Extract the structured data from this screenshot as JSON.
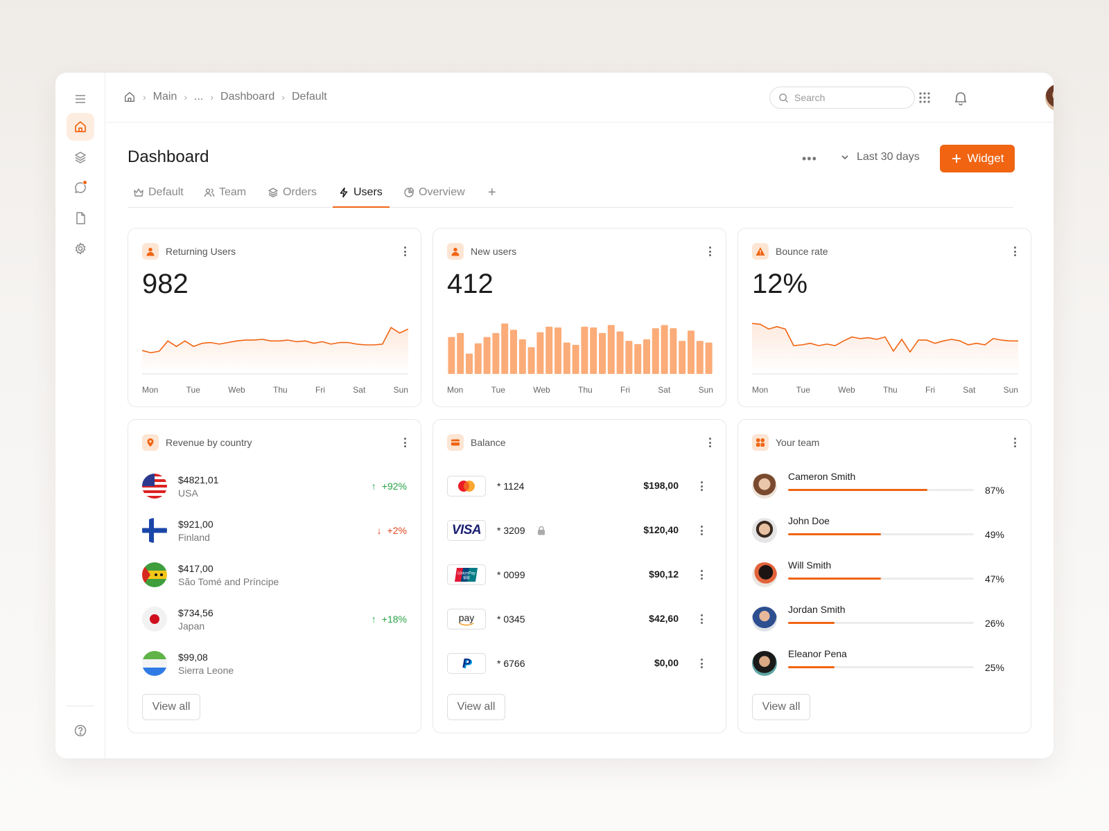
{
  "breadcrumb": {
    "items": [
      "Main",
      "...",
      "Dashboard",
      "Default"
    ]
  },
  "search": {
    "placeholder": "Search"
  },
  "header": {
    "title": "Dashboard",
    "more": "•••",
    "range": "Last 30 days",
    "widget_label": "Widget"
  },
  "tabs": [
    {
      "label": "Default",
      "icon": "crown-icon"
    },
    {
      "label": "Team",
      "icon": "users-icon"
    },
    {
      "label": "Orders",
      "icon": "layers-icon"
    },
    {
      "label": "Users",
      "icon": "bolt-icon",
      "active": true
    },
    {
      "label": "Overview",
      "icon": "pie-icon"
    }
  ],
  "colors": {
    "accent": "#f06412",
    "bar": "#fbac78",
    "up": "#25a244",
    "down": "#e0461e"
  },
  "days": [
    "Mon",
    "Tue",
    "Web",
    "Thu",
    "Fri",
    "Sat",
    "Sun"
  ],
  "stats": [
    {
      "title": "Returning Users",
      "value": "982",
      "icon": "user-icon",
      "chart_data": {
        "type": "area",
        "values": [
          28,
          25,
          27,
          40,
          33,
          40,
          33,
          37,
          38,
          36,
          38,
          40,
          41,
          41,
          42,
          40,
          40,
          41,
          39,
          40,
          37,
          39,
          36,
          38,
          38,
          36,
          35,
          35,
          36,
          57,
          50,
          55
        ]
      }
    },
    {
      "title": "New users",
      "value": "412",
      "icon": "user-icon",
      "chart_data": {
        "type": "bar",
        "values": [
          45,
          50,
          24,
          37,
          45,
          50,
          62,
          54,
          42,
          32,
          51,
          58,
          57,
          38,
          35,
          58,
          57,
          50,
          60,
          52,
          40,
          36,
          42,
          56,
          60,
          56,
          40,
          53,
          40,
          38
        ]
      }
    },
    {
      "title": "Bounce rate",
      "value": "12%",
      "icon": "warning-icon",
      "chart_data": {
        "type": "area",
        "values": [
          62,
          61,
          55,
          58,
          55,
          34,
          35,
          37,
          34,
          36,
          34,
          40,
          45,
          43,
          44,
          42,
          45,
          27,
          42,
          26,
          41,
          41,
          37,
          40,
          42,
          40,
          35,
          37,
          35,
          43,
          41,
          40,
          40
        ]
      }
    }
  ],
  "revenue": {
    "title": "Revenue by country",
    "rows": [
      {
        "amount": "$4821,01",
        "country": "USA",
        "trend": "+92%",
        "dir": "up",
        "flag": "us"
      },
      {
        "amount": "$921,00",
        "country": "Finland",
        "trend": "+2%",
        "dir": "down",
        "flag": "fi"
      },
      {
        "amount": "$417,00",
        "country": "São Tomé and Príncipe",
        "trend": "",
        "dir": "",
        "flag": "st"
      },
      {
        "amount": "$734,56",
        "country": "Japan",
        "trend": "+18%",
        "dir": "up",
        "flag": "jp"
      },
      {
        "amount": "$99,08",
        "country": "Sierra Leone",
        "trend": "",
        "dir": "",
        "flag": "sl"
      }
    ],
    "view_all": "View all"
  },
  "balance": {
    "title": "Balance",
    "rows": [
      {
        "brand": "mastercard-icon",
        "number": "* 1124",
        "amount": "$198,00",
        "locked": false
      },
      {
        "brand": "visa-icon",
        "number": "* 3209",
        "amount": "$120,40",
        "locked": true,
        "label": "VISA"
      },
      {
        "brand": "unionpay-icon",
        "number": "* 0099",
        "amount": "$90,12",
        "locked": false,
        "label": "UnionPay",
        "sub": "银联"
      },
      {
        "brand": "amazon-pay-icon",
        "number": "* 0345",
        "amount": "$42,60",
        "locked": false,
        "label": "pay"
      },
      {
        "brand": "paypal-icon",
        "number": "* 6766",
        "amount": "$0,00",
        "locked": false,
        "label": "P"
      }
    ],
    "view_all": "View all"
  },
  "team": {
    "title": "Your team",
    "members": [
      {
        "name": "Cameron Smith",
        "pct": "87%",
        "value": 0.75
      },
      {
        "name": "John Doe",
        "pct": "49%",
        "value": 0.5
      },
      {
        "name": "Will Smith",
        "pct": "47%",
        "value": 0.5
      },
      {
        "name": "Jordan Smith",
        "pct": "26%",
        "value": 0.25
      },
      {
        "name": "Eleanor Pena",
        "pct": "25%",
        "value": 0.25
      }
    ],
    "view_all": "View all"
  }
}
